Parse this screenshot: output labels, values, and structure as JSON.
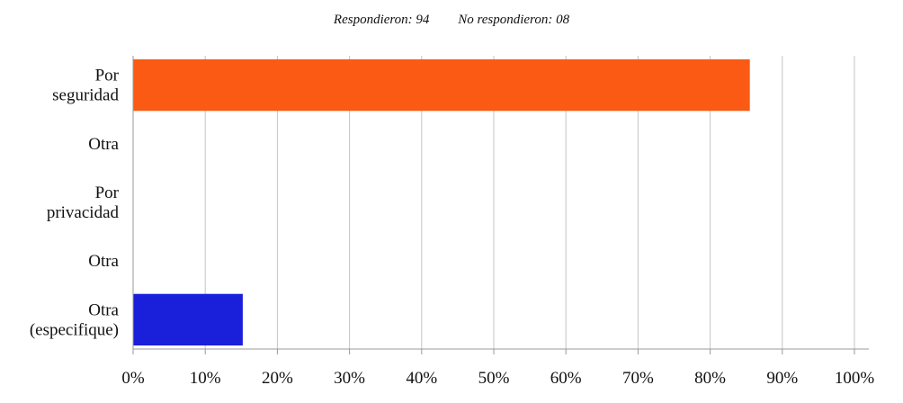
{
  "summary": {
    "responded": "Respondieron: 94",
    "not_responded": "No respondieron: 08"
  },
  "chart_data": {
    "type": "bar",
    "orientation": "horizontal",
    "categories": [
      [
        "Por",
        "seguridad"
      ],
      [
        "Otra"
      ],
      [
        "Por",
        "privacidad"
      ],
      [
        "Otra"
      ],
      [
        "Otra",
        "(especifique)"
      ]
    ],
    "values": [
      85.5,
      0,
      0,
      0,
      15.2
    ],
    "bar_colors": [
      "#FA5A14",
      "#FA5A14",
      "#FA5A14",
      "#FA5A14",
      "#1A1FD9"
    ],
    "xlim": [
      0,
      100
    ],
    "xticks": [
      "0%",
      "10%",
      "20%",
      "30%",
      "40%",
      "50%",
      "60%",
      "70%",
      "80%",
      "90%",
      "100%"
    ],
    "grid": true,
    "legend": "none"
  }
}
